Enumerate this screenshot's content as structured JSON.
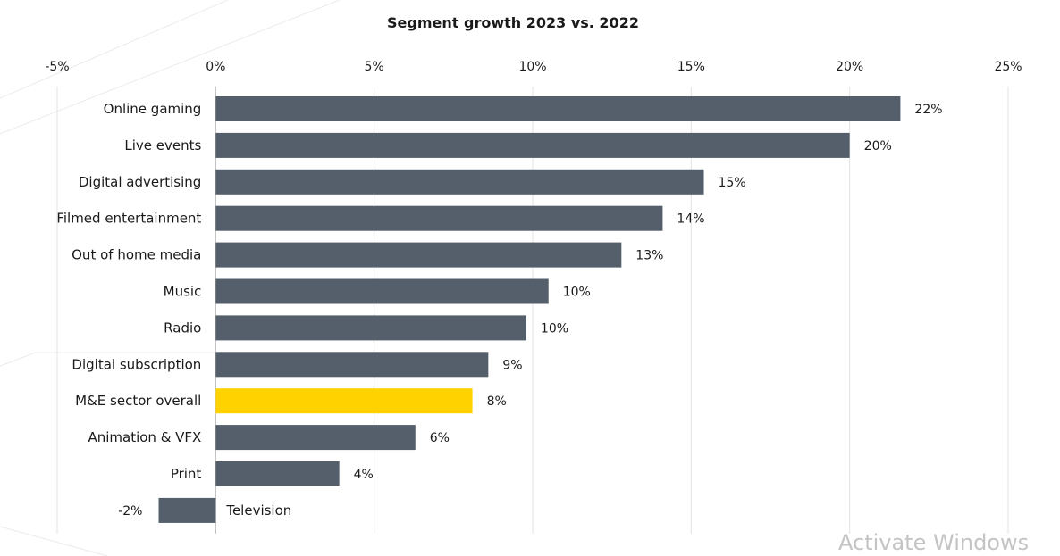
{
  "chart_data": {
    "type": "bar",
    "orientation": "horizontal",
    "title": "Segment growth 2023 vs. 2022",
    "xlabel": "",
    "ylabel": "",
    "xlim": [
      -5,
      25
    ],
    "x_ticks": [
      "-5%",
      "0%",
      "5%",
      "10%",
      "15%",
      "20%",
      "25%"
    ],
    "categories": [
      "Online gaming",
      "Live  events",
      "Digital advertising",
      "Filmed entertainment",
      "Out of home media",
      "Music",
      "Radio",
      "Digital subscription",
      "M&E sector  overall",
      "Animation  & VFX",
      "Print",
      "Television"
    ],
    "values": [
      21.6,
      20.0,
      15.4,
      14.1,
      12.8,
      10.5,
      9.8,
      8.6,
      8.1,
      6.3,
      3.9,
      -1.8
    ],
    "data_labels": [
      "22%",
      "20%",
      "15%",
      "14%",
      "13%",
      "10%",
      "10%",
      "9%",
      "8%",
      "6%",
      "4%",
      "-2%"
    ],
    "highlight_category": "M&E sector  overall",
    "colors": {
      "bar": "#545f6b",
      "highlight": "#ffd200"
    },
    "grid": true,
    "legend": "none"
  },
  "watermark": "Activate Windows"
}
